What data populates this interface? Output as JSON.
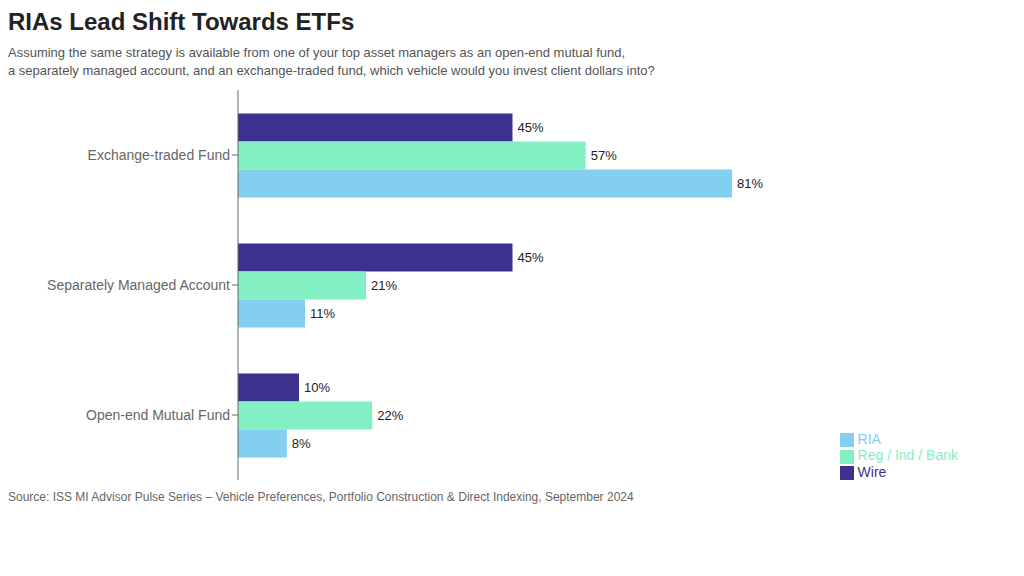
{
  "chart_data": {
    "type": "bar",
    "orientation": "horizontal",
    "title": "RIAs Lead Shift Towards ETFs",
    "subtitle": [
      "Assuming the same strategy is available from one of your top asset managers as an open-end mutual fund,",
      "a separately managed account, and an exchange-traded fund, which vehicle would you invest client dollars into?"
    ],
    "source": "Source: ISS MI Advisor Pulse Series – Vehicle Preferences, Portfolio Construction & Direct Indexing, September 2024",
    "categories": [
      "Exchange-traded Fund",
      "Separately Managed Account",
      "Open-end Mutual Fund"
    ],
    "series": [
      {
        "name": "Wire",
        "color": "#3d318f",
        "values": [
          45,
          45,
          10
        ],
        "value_labels": [
          "45%",
          "45%",
          "10%"
        ]
      },
      {
        "name": "Reg / Ind / Bank",
        "color": "#82f0c3",
        "values": [
          57,
          21,
          22
        ],
        "value_labels": [
          "57%",
          "21%",
          "22%"
        ]
      },
      {
        "name": "RIA",
        "color": "#82cff0",
        "values": [
          81,
          11,
          8
        ],
        "value_labels": [
          "81%",
          "11%",
          "8%"
        ]
      }
    ],
    "xlim": [
      0,
      96
    ],
    "data_labels": true,
    "tick_labels": "y",
    "grid": false,
    "legend": "lower right"
  }
}
